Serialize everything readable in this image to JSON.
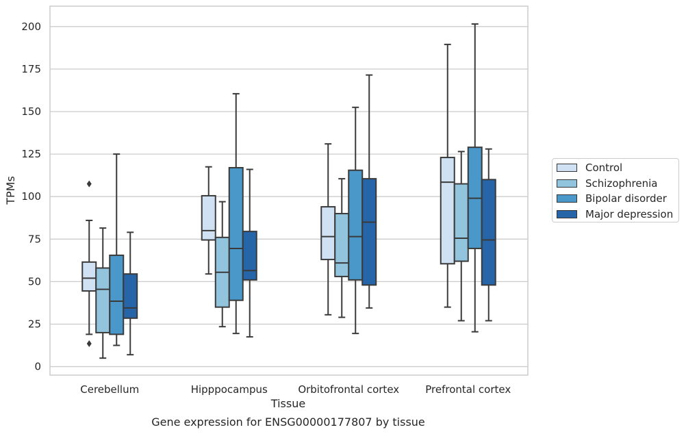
{
  "chart_data": {
    "type": "boxplot",
    "title": "Gene expression for ENSG00000177807 by tissue",
    "xlabel": "Tissue",
    "ylabel": "TPMs",
    "ylim": [
      -5,
      212
    ],
    "yticks": [
      0,
      25,
      50,
      75,
      100,
      125,
      150,
      175,
      200
    ],
    "grid": "horizontal",
    "legend_position": "right",
    "categories": [
      "Cerebellum",
      "Hipppocampus",
      "Orbitofrontal cortex",
      "Prefrontal cortex"
    ],
    "series": [
      {
        "name": "Control",
        "color": "#cfe1f2",
        "boxes": [
          {
            "whislo": 19,
            "q1": 44.5,
            "med": 52,
            "q3": 61.5,
            "whishi": 86,
            "fliers": [
              107.5,
              13.5
            ]
          },
          {
            "whislo": 54.5,
            "q1": 74.5,
            "med": 80,
            "q3": 100.5,
            "whishi": 117.5,
            "fliers": []
          },
          {
            "whislo": 30.5,
            "q1": 63,
            "med": 76.5,
            "q3": 94,
            "whishi": 131,
            "fliers": []
          },
          {
            "whislo": 35,
            "q1": 60.5,
            "med": 108.5,
            "q3": 123,
            "whishi": 189.5,
            "fliers": []
          }
        ]
      },
      {
        "name": "Schizophrenia",
        "color": "#93c4de",
        "boxes": [
          {
            "whislo": 5,
            "q1": 20,
            "med": 45.5,
            "q3": 58,
            "whishi": 81.5,
            "fliers": []
          },
          {
            "whislo": 23.5,
            "q1": 35,
            "med": 55.5,
            "q3": 76,
            "whishi": 97,
            "fliers": []
          },
          {
            "whislo": 29,
            "q1": 53,
            "med": 61,
            "q3": 90,
            "whishi": 110.5,
            "fliers": []
          },
          {
            "whislo": 27,
            "q1": 62,
            "med": 75.5,
            "q3": 107.5,
            "whishi": 126.5,
            "fliers": []
          }
        ]
      },
      {
        "name": "Bipolar disorder",
        "color": "#4a98c9",
        "boxes": [
          {
            "whislo": 12.5,
            "q1": 19,
            "med": 38.5,
            "q3": 65.5,
            "whishi": 125,
            "fliers": []
          },
          {
            "whislo": 19.5,
            "q1": 39,
            "med": 69.5,
            "q3": 117,
            "whishi": 160.5,
            "fliers": []
          },
          {
            "whislo": 19.5,
            "q1": 51,
            "med": 76.5,
            "q3": 115.5,
            "whishi": 152.5,
            "fliers": []
          },
          {
            "whislo": 20.5,
            "q1": 69.5,
            "med": 99,
            "q3": 129,
            "whishi": 201.5,
            "fliers": []
          }
        ]
      },
      {
        "name": "Major depression",
        "color": "#2565a8",
        "boxes": [
          {
            "whislo": 7,
            "q1": 28.5,
            "med": 34.5,
            "q3": 54.5,
            "whishi": 79,
            "fliers": []
          },
          {
            "whislo": 17.5,
            "q1": 51,
            "med": 56.5,
            "q3": 79.5,
            "whishi": 116,
            "fliers": []
          },
          {
            "whislo": 34.5,
            "q1": 48,
            "med": 85,
            "q3": 110.5,
            "whishi": 171.5,
            "fliers": []
          },
          {
            "whislo": 27,
            "q1": 48,
            "med": 74.5,
            "q3": 110,
            "whishi": 128,
            "fliers": []
          }
        ]
      }
    ]
  }
}
